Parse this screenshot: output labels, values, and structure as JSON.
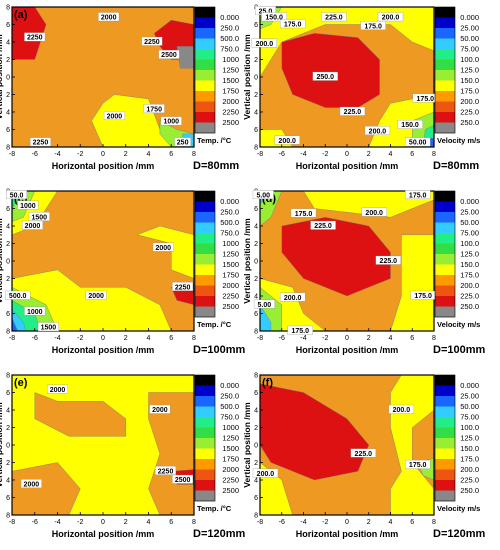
{
  "chart_data": [
    {
      "type": "heatmap",
      "panel_label": "(a)",
      "xlabel": "Horizontal position  /mm",
      "ylabel": "Vertical position  /mm",
      "x_ticks": [
        -8,
        -6,
        -4,
        -2,
        0,
        2,
        4,
        6,
        8
      ],
      "y_ticks": [
        8,
        6,
        4,
        2,
        0,
        2,
        4,
        6,
        8
      ],
      "xlim": [
        -8,
        8
      ],
      "ylim": [
        -8,
        8
      ],
      "distance_label": "D=80mm",
      "colorbar": {
        "title": "Temp.  /°C",
        "levels": [
          "0.000",
          "250.0",
          "500.0",
          "750.0",
          "1000",
          "1250",
          "1500",
          "1750",
          "2000",
          "2250",
          "2500"
        ],
        "colors": [
          "#000000",
          "#0000cc",
          "#1a66ff",
          "#33ccff",
          "#22ee88",
          "#33dd44",
          "#99ee33",
          "#ffff00",
          "#ff9900",
          "#ee5511",
          "#dd1111",
          "#888888"
        ]
      },
      "contour_labels": [
        {
          "text": "2000",
          "x": 0.5,
          "y": 6.8
        },
        {
          "text": "2250",
          "x": -6.0,
          "y": 4.5
        },
        {
          "text": "2250",
          "x": 4.3,
          "y": 4.0
        },
        {
          "text": "2500",
          "x": 5.8,
          "y": 2.5
        },
        {
          "text": "2000",
          "x": 1.0,
          "y": -4.5
        },
        {
          "text": "1750",
          "x": 4.5,
          "y": -3.7
        },
        {
          "text": "1000",
          "x": 6.0,
          "y": -5.1
        },
        {
          "text": "2250",
          "x": -5.5,
          "y": -7.5
        },
        {
          "text": "250",
          "x": 7.0,
          "y": -7.5
        }
      ]
    },
    {
      "type": "heatmap",
      "panel_label": "(b)",
      "xlabel": "Horizontal position  /mm",
      "ylabel": "Vertical position  /mm",
      "x_ticks": [
        -8,
        -6,
        -4,
        -2,
        0,
        2,
        4,
        6,
        8
      ],
      "y_ticks": [
        8,
        6,
        4,
        2,
        0,
        2,
        4,
        6,
        8
      ],
      "xlim": [
        -8,
        8
      ],
      "ylim": [
        -8,
        8
      ],
      "distance_label": "D=80mm",
      "colorbar": {
        "title": "Velocity  m/s",
        "levels": [
          "0.000",
          "25.00",
          "50.00",
          "75.00",
          "100.0",
          "125.0",
          "150.0",
          "175.0",
          "200.0",
          "225.0",
          "250.0"
        ],
        "colors": [
          "#000000",
          "#0000cc",
          "#1a66ff",
          "#33ccff",
          "#22ee88",
          "#33dd44",
          "#99ee33",
          "#ffff00",
          "#ff9900",
          "#ee5511",
          "#dd1111",
          "#888888"
        ]
      },
      "contour_labels": [
        {
          "text": "25.0",
          "x": -7.5,
          "y": 7.5
        },
        {
          "text": "150.0",
          "x": -6.7,
          "y": 6.8
        },
        {
          "text": "175.0",
          "x": -5.0,
          "y": 6.0
        },
        {
          "text": "225.0",
          "x": -1.2,
          "y": 6.8
        },
        {
          "text": "200.0",
          "x": 4.0,
          "y": 6.8
        },
        {
          "text": "200.0",
          "x": -7.6,
          "y": 3.8
        },
        {
          "text": "175.0",
          "x": 2.4,
          "y": 5.8
        },
        {
          "text": "250.0",
          "x": -2.0,
          "y": 0.0
        },
        {
          "text": "175.0",
          "x": 7.2,
          "y": -2.5
        },
        {
          "text": "225.0",
          "x": 0.5,
          "y": -4.0
        },
        {
          "text": "150.0",
          "x": 5.8,
          "y": -5.5
        },
        {
          "text": "200.0",
          "x": 2.8,
          "y": -6.2
        },
        {
          "text": "50.00",
          "x": 6.5,
          "y": -7.5
        },
        {
          "text": "200.0",
          "x": -5.5,
          "y": -7.3
        }
      ]
    },
    {
      "type": "heatmap",
      "panel_label": "(c)",
      "xlabel": "Horizontal position  /mm",
      "ylabel": "Vertical position  /mm",
      "x_ticks": [
        -8,
        -6,
        -4,
        -2,
        0,
        2,
        4,
        6,
        8
      ],
      "y_ticks": [
        8,
        6,
        4,
        2,
        0,
        2,
        4,
        6,
        8
      ],
      "xlim": [
        -8,
        8
      ],
      "ylim": [
        -8,
        8
      ],
      "distance_label": "D=100mm",
      "colorbar": {
        "title": "Temp.  /°C",
        "levels": [
          "0.000",
          "250.0",
          "500.0",
          "750.0",
          "1000",
          "1250",
          "1500",
          "1750",
          "2000",
          "2250",
          "2500"
        ],
        "colors": [
          "#000000",
          "#0000cc",
          "#1a66ff",
          "#33ccff",
          "#22ee88",
          "#33dd44",
          "#99ee33",
          "#ffff00",
          "#ff9900",
          "#ee5511",
          "#dd1111",
          "#888888"
        ]
      },
      "contour_labels": [
        {
          "text": "50.0",
          "x": -7.6,
          "y": 7.5
        },
        {
          "text": "1000",
          "x": -6.6,
          "y": 6.3
        },
        {
          "text": "1500",
          "x": -5.6,
          "y": 5.0
        },
        {
          "text": "2000",
          "x": -6.2,
          "y": 4.0
        },
        {
          "text": "2000",
          "x": 5.3,
          "y": 1.5
        },
        {
          "text": "2250",
          "x": 7.0,
          "y": -3.0
        },
        {
          "text": "2000",
          "x": -0.6,
          "y": -4.0
        },
        {
          "text": "500.0",
          "x": -7.5,
          "y": -4.0
        },
        {
          "text": "1000",
          "x": -6.0,
          "y": -5.8
        },
        {
          "text": "1500",
          "x": -4.8,
          "y": -7.6
        }
      ]
    },
    {
      "type": "heatmap",
      "panel_label": "(d)",
      "xlabel": "Horizontal position  /mm",
      "ylabel": "Vertical position  /mm",
      "x_ticks": [
        -8,
        -6,
        -4,
        -2,
        0,
        2,
        4,
        6,
        8
      ],
      "y_ticks": [
        8,
        6,
        4,
        2,
        0,
        2,
        4,
        6,
        8
      ],
      "xlim": [
        -8,
        8
      ],
      "ylim": [
        -8,
        8
      ],
      "distance_label": "D=100mm",
      "colorbar": {
        "title": "Velocity  m/s",
        "levels": [
          "0.000",
          "25.00",
          "50.00",
          "75.00",
          "100.0",
          "125.0",
          "150.0",
          "175.0",
          "200.0",
          "225.0",
          "250.0"
        ],
        "colors": [
          "#000000",
          "#0000cc",
          "#1a66ff",
          "#33ccff",
          "#22ee88",
          "#33dd44",
          "#99ee33",
          "#ffff00",
          "#ff9900",
          "#ee5511",
          "#dd1111",
          "#888888"
        ]
      },
      "contour_labels": [
        {
          "text": "5.00",
          "x": -7.7,
          "y": 7.5
        },
        {
          "text": "175.0",
          "x": 6.5,
          "y": 7.5
        },
        {
          "text": "175.0",
          "x": -4.0,
          "y": 5.4
        },
        {
          "text": "200.0",
          "x": 2.5,
          "y": 5.5
        },
        {
          "text": "225.0",
          "x": -2.2,
          "y": 4.0
        },
        {
          "text": "225.0",
          "x": 3.8,
          "y": 0.0
        },
        {
          "text": "5.00",
          "x": -7.6,
          "y": -5.0
        },
        {
          "text": "200.0",
          "x": -5.0,
          "y": -4.2
        },
        {
          "text": "175.0",
          "x": 7.0,
          "y": -4.0
        },
        {
          "text": "175.0",
          "x": -4.3,
          "y": -8.0
        }
      ]
    },
    {
      "type": "heatmap",
      "panel_label": "(e)",
      "xlabel": "Horizontal position  /mm",
      "ylabel": "Vertical position  /mm",
      "x_ticks": [
        -8,
        -6,
        -4,
        -2,
        0,
        2,
        4,
        6,
        8
      ],
      "y_ticks": [
        8,
        6,
        4,
        2,
        0,
        2,
        4,
        6,
        8
      ],
      "xlim": [
        -8,
        8
      ],
      "ylim": [
        -8,
        8
      ],
      "distance_label": "D=120mm",
      "colorbar": {
        "title": "Temp.  /°C",
        "levels": [
          "0.000",
          "250.0",
          "500.0",
          "750.0",
          "1000",
          "1250",
          "1500",
          "1750",
          "2000",
          "2250",
          "2500"
        ],
        "colors": [
          "#000000",
          "#0000cc",
          "#1a66ff",
          "#33ccff",
          "#22ee88",
          "#33dd44",
          "#99ee33",
          "#ffff00",
          "#ff9900",
          "#ee5511",
          "#dd1111",
          "#888888"
        ]
      },
      "contour_labels": [
        {
          "text": "2000",
          "x": -4.0,
          "y": 6.3
        },
        {
          "text": "2000",
          "x": 5.0,
          "y": 4.0
        },
        {
          "text": "2250",
          "x": 5.5,
          "y": -3.0
        },
        {
          "text": "2500",
          "x": 7.0,
          "y": -4.0
        },
        {
          "text": "2000",
          "x": -6.3,
          "y": -4.5
        }
      ]
    },
    {
      "type": "heatmap",
      "panel_label": "(f)",
      "xlabel": "Horizontal position  /mm",
      "ylabel": "Vertical position  /mm",
      "x_ticks": [
        -8,
        -6,
        -4,
        -2,
        0,
        2,
        4,
        6,
        8
      ],
      "y_ticks": [
        8,
        6,
        4,
        2,
        0,
        2,
        4,
        6,
        8
      ],
      "xlim": [
        -8,
        8
      ],
      "ylim": [
        -8,
        8
      ],
      "distance_label": "D=120mm",
      "colorbar": {
        "title": "Velocity  m/s",
        "levels": [
          "0.000",
          "25.00",
          "50.00",
          "75.00",
          "100.0",
          "125.0",
          "150.0",
          "175.0",
          "200.0",
          "225.0",
          "250.0"
        ],
        "colors": [
          "#000000",
          "#0000cc",
          "#1a66ff",
          "#33ccff",
          "#22ee88",
          "#33dd44",
          "#99ee33",
          "#ffff00",
          "#ff9900",
          "#ee5511",
          "#dd1111",
          "#888888"
        ]
      },
      "contour_labels": [
        {
          "text": "200.0",
          "x": 5.0,
          "y": 4.0
        },
        {
          "text": "225.0",
          "x": 1.5,
          "y": -1.0
        },
        {
          "text": "175.0",
          "x": 6.5,
          "y": -2.3
        },
        {
          "text": "200.0",
          "x": -7.5,
          "y": -3.3
        }
      ]
    }
  ]
}
